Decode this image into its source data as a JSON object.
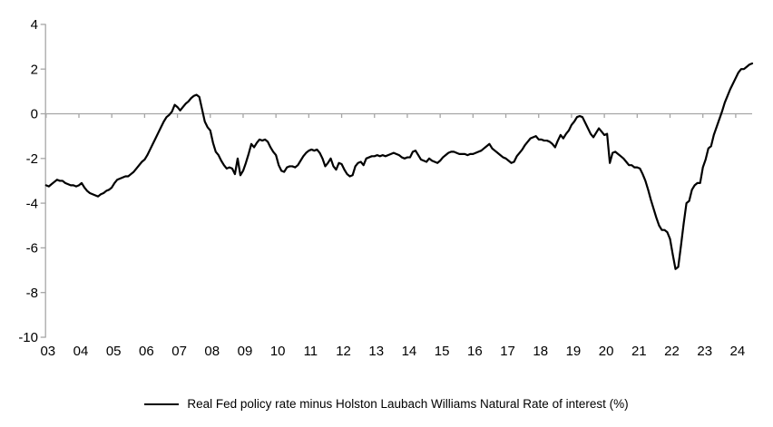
{
  "chart_data": {
    "type": "line",
    "title": "",
    "legend": "Real Fed policy rate minus Holston Laubach Williams Natural Rate of interest (%)",
    "xlabel": "",
    "ylabel": "",
    "ylim": [
      -10,
      4
    ],
    "grid": "zero-line-only",
    "legend_position": "bottom-center",
    "axis_color": "#a6a6a6",
    "label_color": "#000000",
    "y_ticks": [
      4,
      2,
      0,
      -2,
      -4,
      -6,
      -8,
      -10
    ],
    "x_tick_labels": [
      "03",
      "04",
      "05",
      "06",
      "07",
      "08",
      "09",
      "10",
      "11",
      "12",
      "13",
      "14",
      "15",
      "16",
      "17",
      "18",
      "19",
      "20",
      "21",
      "22",
      "23",
      "24"
    ],
    "x_start": "2003-01",
    "x_end": "2024-07",
    "frequency": "monthly",
    "series": [
      {
        "name": "Real Fed policy rate minus Holston Laubach Williams Natural Rate of interest (%)",
        "color": "#000000",
        "values": [
          -3.2,
          -3.25,
          -3.15,
          -3.05,
          -2.95,
          -3.0,
          -3.0,
          -3.1,
          -3.15,
          -3.2,
          -3.2,
          -3.25,
          -3.2,
          -3.1,
          -3.3,
          -3.45,
          -3.55,
          -3.6,
          -3.65,
          -3.7,
          -3.6,
          -3.55,
          -3.45,
          -3.4,
          -3.3,
          -3.1,
          -2.95,
          -2.9,
          -2.85,
          -2.8,
          -2.8,
          -2.7,
          -2.6,
          -2.45,
          -2.3,
          -2.15,
          -2.05,
          -1.85,
          -1.6,
          -1.35,
          -1.1,
          -0.85,
          -0.6,
          -0.35,
          -0.15,
          -0.05,
          0.1,
          0.4,
          0.3,
          0.15,
          0.3,
          0.45,
          0.55,
          0.7,
          0.8,
          0.85,
          0.75,
          0.2,
          -0.35,
          -0.6,
          -0.75,
          -1.3,
          -1.7,
          -1.85,
          -2.1,
          -2.3,
          -2.45,
          -2.4,
          -2.45,
          -2.7,
          -2.0,
          -2.75,
          -2.55,
          -2.2,
          -1.8,
          -1.35,
          -1.5,
          -1.3,
          -1.15,
          -1.2,
          -1.15,
          -1.25,
          -1.5,
          -1.7,
          -1.85,
          -2.3,
          -2.55,
          -2.6,
          -2.4,
          -2.35,
          -2.35,
          -2.4,
          -2.3,
          -2.1,
          -1.9,
          -1.75,
          -1.65,
          -1.6,
          -1.65,
          -1.6,
          -1.75,
          -2.0,
          -2.35,
          -2.2,
          -2.0,
          -2.35,
          -2.5,
          -2.2,
          -2.25,
          -2.5,
          -2.7,
          -2.8,
          -2.75,
          -2.35,
          -2.2,
          -2.15,
          -2.3,
          -2.0,
          -1.95,
          -1.9,
          -1.9,
          -1.85,
          -1.9,
          -1.85,
          -1.9,
          -1.85,
          -1.8,
          -1.75,
          -1.8,
          -1.85,
          -1.95,
          -2.0,
          -1.95,
          -1.95,
          -1.7,
          -1.65,
          -1.85,
          -2.05,
          -2.1,
          -2.15,
          -2.0,
          -2.1,
          -2.15,
          -2.2,
          -2.1,
          -1.95,
          -1.85,
          -1.75,
          -1.7,
          -1.7,
          -1.75,
          -1.8,
          -1.8,
          -1.8,
          -1.85,
          -1.8,
          -1.8,
          -1.75,
          -1.7,
          -1.65,
          -1.55,
          -1.45,
          -1.35,
          -1.55,
          -1.65,
          -1.75,
          -1.85,
          -1.95,
          -2.0,
          -2.1,
          -2.2,
          -2.15,
          -1.9,
          -1.75,
          -1.6,
          -1.4,
          -1.25,
          -1.1,
          -1.05,
          -1.0,
          -1.15,
          -1.15,
          -1.2,
          -1.2,
          -1.25,
          -1.35,
          -1.5,
          -1.2,
          -0.95,
          -1.1,
          -0.9,
          -0.75,
          -0.5,
          -0.35,
          -0.15,
          -0.1,
          -0.15,
          -0.4,
          -0.65,
          -0.9,
          -1.05,
          -0.85,
          -0.65,
          -0.8,
          -0.95,
          -0.9,
          -2.2,
          -1.75,
          -1.7,
          -1.8,
          -1.9,
          -2.0,
          -2.15,
          -2.3,
          -2.3,
          -2.4,
          -2.4,
          -2.45,
          -2.7,
          -3.0,
          -3.4,
          -3.85,
          -4.25,
          -4.65,
          -5.0,
          -5.2,
          -5.2,
          -5.3,
          -5.6,
          -6.3,
          -6.95,
          -6.85,
          -5.9,
          -4.9,
          -4.0,
          -3.9,
          -3.4,
          -3.2,
          -3.1,
          -3.1,
          -2.4,
          -2.05,
          -1.55,
          -1.45,
          -0.95,
          -0.6,
          -0.25,
          0.1,
          0.5,
          0.8,
          1.1,
          1.35,
          1.6,
          1.85,
          2.0,
          2.0,
          2.1,
          2.2,
          2.25
        ]
      }
    ]
  }
}
